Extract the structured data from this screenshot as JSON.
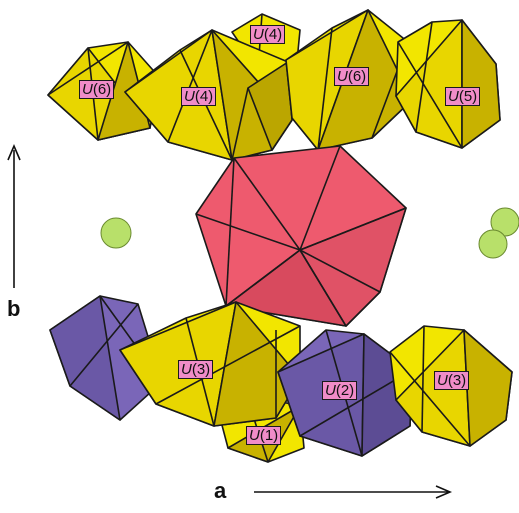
{
  "labels": {
    "u6_left": {
      "letter": "U",
      "index": "(6)"
    },
    "u4_upper": {
      "letter": "U",
      "index": "(4)"
    },
    "u4_mid": {
      "letter": "U",
      "index": "(4)"
    },
    "u6_right": {
      "letter": "U",
      "index": "(6)"
    },
    "u5": {
      "letter": "U",
      "index": "(5)"
    },
    "u3_left": {
      "letter": "U",
      "index": "(3)"
    },
    "u2": {
      "letter": "U",
      "index": "(2)"
    },
    "u3_right": {
      "letter": "U",
      "index": "(3)"
    },
    "u1": {
      "letter": "U",
      "index": "(1)"
    }
  },
  "axes": {
    "b": "b",
    "a": "a"
  },
  "colors": {
    "uranyl_yellow": "#f2e600",
    "uranyl_shadow": "#c8b200",
    "central_red": "#ee5a6e",
    "purple": "#7a66b8",
    "sphere_green": "#b8e06a",
    "label_pink": "#f08cc8"
  }
}
